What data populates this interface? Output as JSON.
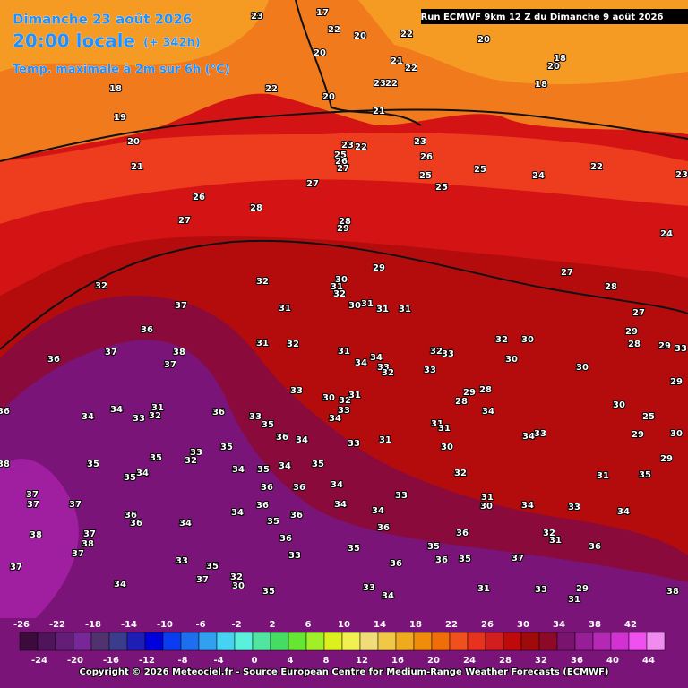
{
  "header": {
    "date": "Dimanche 23 août 2026",
    "time": "20:00 locale",
    "lead": "(+ 342h)",
    "parameter": "Temp. maximale à 2m sur 6h (°C)",
    "run": "Run ECMWF 9km 12 Z du Dimanche 9 août 2026"
  },
  "map": {
    "labels": [
      "17",
      "23",
      "22",
      "20",
      "22",
      "20",
      "18",
      "20",
      "20",
      "21",
      "22",
      "23",
      "22",
      "22",
      "20",
      "18",
      "18",
      "19",
      "20",
      "21",
      "21",
      "23",
      "26",
      "22",
      "23",
      "25",
      "26",
      "27",
      "25",
      "25",
      "25",
      "24",
      "22",
      "23",
      "27",
      "26",
      "27",
      "28",
      "28",
      "29",
      "24",
      "29",
      "27",
      "28",
      "32",
      "32",
      "30",
      "31",
      "32",
      "31",
      "30",
      "31",
      "31",
      "31",
      "27",
      "37",
      "36",
      "38",
      "37",
      "36",
      "37",
      "31",
      "32",
      "31",
      "32",
      "33",
      "32",
      "30",
      "29",
      "28",
      "29",
      "33",
      "34",
      "34",
      "33",
      "32",
      "33",
      "30",
      "30",
      "29",
      "33",
      "30",
      "32",
      "31",
      "33",
      "34",
      "29",
      "28",
      "28",
      "34",
      "30",
      "25",
      "36",
      "34",
      "34",
      "33",
      "31",
      "32",
      "36",
      "33",
      "35",
      "31",
      "31",
      "33",
      "34",
      "29",
      "30",
      "36",
      "34",
      "35",
      "33",
      "32",
      "31",
      "33",
      "30",
      "38",
      "35",
      "35",
      "35",
      "34",
      "34",
      "35",
      "34",
      "35",
      "32",
      "31",
      "35",
      "29",
      "36",
      "36",
      "34",
      "33",
      "31",
      "30",
      "34",
      "33",
      "34",
      "37",
      "37",
      "37",
      "36",
      "36",
      "34",
      "34",
      "36",
      "35",
      "36",
      "34",
      "34",
      "36",
      "38",
      "37",
      "38",
      "37",
      "37",
      "33",
      "35",
      "37",
      "32",
      "30",
      "33",
      "36",
      "35",
      "35",
      "36",
      "36",
      "35",
      "37",
      "32",
      "31",
      "36",
      "36",
      "34",
      "35",
      "33",
      "34",
      "31",
      "33",
      "29",
      "31",
      "38"
    ]
  },
  "legend": {
    "top_ticks": [
      "-26",
      "-22",
      "-18",
      "-14",
      "-10",
      "-6",
      "-2",
      "2",
      "6",
      "10",
      "14",
      "18",
      "22",
      "26",
      "30",
      "34",
      "38",
      "42"
    ],
    "bottom_ticks": [
      "-24",
      "-20",
      "-16",
      "-12",
      "-8",
      "-4",
      "0",
      "4",
      "8",
      "12",
      "16",
      "20",
      "24",
      "28",
      "32",
      "36",
      "40",
      "44"
    ]
  },
  "footer": {
    "copyright": "Copyright © 2026 Meteociel.fr - Source European Centre for Medium-Range Weather Forecasts (ECMWF)"
  }
}
